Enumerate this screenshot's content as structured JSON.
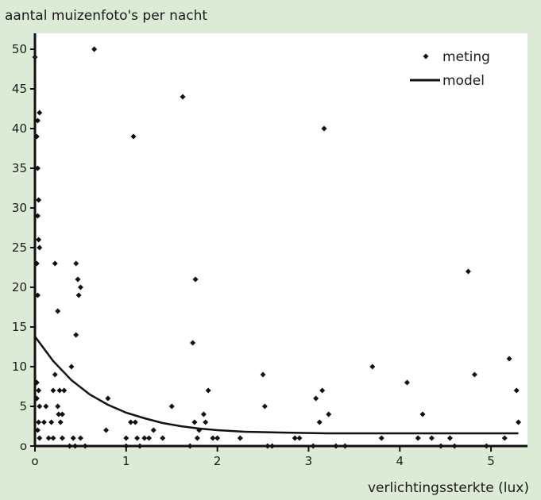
{
  "chart_data": {
    "type": "scatter",
    "ylabel": "aantal muizenfoto's per nacht",
    "xlabel": "verlichtingssterkte (lux)",
    "xlim": [
      0,
      5.4
    ],
    "ylim": [
      0,
      52
    ],
    "x_ticks": [
      0,
      1,
      2,
      3,
      4,
      5
    ],
    "x_tick_labels": [
      "o",
      "1",
      "2",
      "3",
      "4",
      "5"
    ],
    "y_ticks": [
      0,
      5,
      10,
      15,
      20,
      25,
      30,
      35,
      40,
      45,
      50
    ],
    "y_tick_labels": [
      "o",
      "5",
      "10",
      "15",
      "20",
      "25",
      "30",
      "35",
      "40",
      "45",
      "50"
    ],
    "legend_position": "top-right",
    "grid": false,
    "background_color": "#ffffff",
    "page_color": "#dcebd6",
    "mark_color": "#111111",
    "series": [
      {
        "name": "meting",
        "kind": "scatter",
        "points": [
          [
            0.0,
            49
          ],
          [
            0.05,
            42
          ],
          [
            0.03,
            41
          ],
          [
            0.02,
            39
          ],
          [
            0.03,
            35
          ],
          [
            0.04,
            31
          ],
          [
            0.03,
            29
          ],
          [
            0.04,
            26
          ],
          [
            0.05,
            25
          ],
          [
            0.02,
            23
          ],
          [
            0.03,
            19
          ],
          [
            0.02,
            8
          ],
          [
            0.04,
            7
          ],
          [
            0.02,
            6
          ],
          [
            0.05,
            5
          ],
          [
            0.04,
            3
          ],
          [
            0.03,
            2
          ],
          [
            0.05,
            1
          ],
          [
            0.1,
            3
          ],
          [
            0.12,
            5
          ],
          [
            0.15,
            1
          ],
          [
            0.18,
            3
          ],
          [
            0.2,
            7
          ],
          [
            0.22,
            9
          ],
          [
            0.25,
            5
          ],
          [
            0.28,
            3
          ],
          [
            0.3,
            1
          ],
          [
            0.22,
            23
          ],
          [
            0.25,
            17
          ],
          [
            0.2,
            1
          ],
          [
            0.27,
            7
          ],
          [
            0.32,
            7
          ],
          [
            0.26,
            4
          ],
          [
            0.3,
            4
          ],
          [
            0.4,
            10
          ],
          [
            0.45,
            23
          ],
          [
            0.47,
            21
          ],
          [
            0.5,
            20
          ],
          [
            0.48,
            19
          ],
          [
            0.45,
            14
          ],
          [
            0.42,
            1
          ],
          [
            0.5,
            1
          ],
          [
            0.55,
            0
          ],
          [
            0.38,
            0
          ],
          [
            0.44,
            0
          ],
          [
            0.65,
            50
          ],
          [
            0.8,
            6
          ],
          [
            0.78,
            2
          ],
          [
            1.0,
            1
          ],
          [
            1.05,
            3
          ],
          [
            1.08,
            39
          ],
          [
            1.1,
            3
          ],
          [
            1.12,
            1
          ],
          [
            1.2,
            1
          ],
          [
            1.25,
            1
          ],
          [
            1.3,
            2
          ],
          [
            1.0,
            0
          ],
          [
            1.15,
            0
          ],
          [
            1.5,
            5
          ],
          [
            1.4,
            1
          ],
          [
            1.62,
            44
          ],
          [
            1.73,
            13
          ],
          [
            1.76,
            21
          ],
          [
            1.75,
            3
          ],
          [
            1.8,
            2
          ],
          [
            1.78,
            1
          ],
          [
            1.85,
            4
          ],
          [
            1.87,
            3
          ],
          [
            1.9,
            7
          ],
          [
            1.7,
            0
          ],
          [
            1.95,
            1
          ],
          [
            2.0,
            1
          ],
          [
            2.25,
            1
          ],
          [
            2.5,
            9
          ],
          [
            2.52,
            5
          ],
          [
            2.55,
            0
          ],
          [
            2.6,
            0
          ],
          [
            2.85,
            1
          ],
          [
            2.9,
            1
          ],
          [
            3.08,
            6
          ],
          [
            3.15,
            7
          ],
          [
            3.17,
            40
          ],
          [
            3.12,
            3
          ],
          [
            3.22,
            4
          ],
          [
            3.05,
            0
          ],
          [
            3.3,
            0
          ],
          [
            3.4,
            0
          ],
          [
            3.7,
            10
          ],
          [
            3.8,
            1
          ],
          [
            4.08,
            8
          ],
          [
            4.2,
            1
          ],
          [
            4.25,
            4
          ],
          [
            4.35,
            1
          ],
          [
            4.45,
            0
          ],
          [
            4.55,
            1
          ],
          [
            4.6,
            0
          ],
          [
            4.75,
            22
          ],
          [
            4.82,
            9
          ],
          [
            4.95,
            0
          ],
          [
            5.15,
            1
          ],
          [
            5.2,
            11
          ],
          [
            5.28,
            7
          ],
          [
            5.3,
            3
          ]
        ]
      },
      {
        "name": "model",
        "kind": "line",
        "points": [
          [
            0,
            13.8
          ],
          [
            0.2,
            10.7
          ],
          [
            0.4,
            8.3
          ],
          [
            0.6,
            6.5
          ],
          [
            0.8,
            5.2
          ],
          [
            1.0,
            4.2
          ],
          [
            1.2,
            3.5
          ],
          [
            1.4,
            2.9
          ],
          [
            1.6,
            2.5
          ],
          [
            1.8,
            2.2
          ],
          [
            2.0,
            2.0
          ],
          [
            2.3,
            1.8
          ],
          [
            2.7,
            1.7
          ],
          [
            3.2,
            1.6
          ],
          [
            4.0,
            1.6
          ],
          [
            5.3,
            1.6
          ]
        ]
      }
    ]
  }
}
